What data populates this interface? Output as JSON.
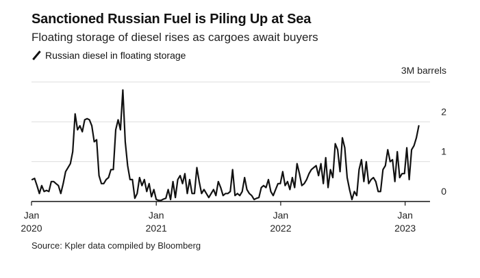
{
  "title": "Sanctioned Russian Fuel is Piling Up at Sea",
  "subtitle": "Floating storage of diesel rises as cargoes await buyers",
  "source": "Source: Kpler data compiled by Bloomberg",
  "colors": {
    "line": "#111111",
    "grid": "#dddddd",
    "axis": "#111111"
  },
  "chart_data": {
    "type": "line",
    "title": "Sanctioned Russian Fuel is Piling Up at Sea",
    "subtitle": "Floating storage of diesel rises as cargoes await buyers",
    "ylabel": "3M barrels",
    "ylim": [
      0,
      3
    ],
    "grid": true,
    "legend_position": "top-left",
    "y_ticks": [
      {
        "value": 2,
        "label": "2"
      },
      {
        "value": 1,
        "label": "1"
      },
      {
        "value": 0,
        "label": "0"
      }
    ],
    "x_ticks": [
      {
        "date": "2020-01-01",
        "month": "Jan",
        "year": "2020"
      },
      {
        "date": "2021-01-01",
        "month": "Jan",
        "year": "2021"
      },
      {
        "date": "2022-01-01",
        "month": "Jan",
        "year": "2022"
      },
      {
        "date": "2023-01-01",
        "month": "Jan",
        "year": "2023"
      }
    ],
    "xlim": [
      "2020-01-01",
      "2023-03-15"
    ],
    "series": [
      {
        "name": "Russian diesel in floating storage",
        "points": [
          [
            "2020-01-03",
            0.55
          ],
          [
            "2020-01-10",
            0.58
          ],
          [
            "2020-01-17",
            0.4
          ],
          [
            "2020-01-24",
            0.2
          ],
          [
            "2020-01-31",
            0.4
          ],
          [
            "2020-02-07",
            0.25
          ],
          [
            "2020-02-14",
            0.28
          ],
          [
            "2020-02-21",
            0.25
          ],
          [
            "2020-02-28",
            0.5
          ],
          [
            "2020-03-06",
            0.5
          ],
          [
            "2020-03-13",
            0.45
          ],
          [
            "2020-03-20",
            0.4
          ],
          [
            "2020-03-27",
            0.2
          ],
          [
            "2020-04-03",
            0.45
          ],
          [
            "2020-04-10",
            0.75
          ],
          [
            "2020-04-17",
            0.85
          ],
          [
            "2020-04-24",
            0.95
          ],
          [
            "2020-05-01",
            1.25
          ],
          [
            "2020-05-08",
            2.2
          ],
          [
            "2020-05-15",
            1.8
          ],
          [
            "2020-05-22",
            1.9
          ],
          [
            "2020-05-29",
            1.75
          ],
          [
            "2020-06-05",
            2.05
          ],
          [
            "2020-06-12",
            2.08
          ],
          [
            "2020-06-19",
            2.05
          ],
          [
            "2020-06-26",
            1.9
          ],
          [
            "2020-07-03",
            1.5
          ],
          [
            "2020-07-10",
            1.55
          ],
          [
            "2020-07-17",
            0.65
          ],
          [
            "2020-07-24",
            0.45
          ],
          [
            "2020-07-31",
            0.45
          ],
          [
            "2020-08-07",
            0.55
          ],
          [
            "2020-08-14",
            0.6
          ],
          [
            "2020-08-21",
            0.8
          ],
          [
            "2020-08-28",
            0.8
          ],
          [
            "2020-09-04",
            1.8
          ],
          [
            "2020-09-11",
            2.05
          ],
          [
            "2020-09-18",
            1.8
          ],
          [
            "2020-09-25",
            2.8
          ],
          [
            "2020-10-02",
            1.5
          ],
          [
            "2020-10-09",
            0.9
          ],
          [
            "2020-10-16",
            0.55
          ],
          [
            "2020-10-23",
            0.55
          ],
          [
            "2020-10-30",
            0.08
          ],
          [
            "2020-11-06",
            0.2
          ],
          [
            "2020-11-13",
            0.6
          ],
          [
            "2020-11-20",
            0.4
          ],
          [
            "2020-11-27",
            0.55
          ],
          [
            "2020-12-04",
            0.25
          ],
          [
            "2020-12-11",
            0.45
          ],
          [
            "2020-12-18",
            0.12
          ],
          [
            "2020-12-25",
            0.3
          ],
          [
            "2021-01-01",
            0.05
          ],
          [
            "2021-01-08",
            0.03
          ],
          [
            "2021-01-15",
            0.03
          ],
          [
            "2021-01-22",
            0.06
          ],
          [
            "2021-01-29",
            0.08
          ],
          [
            "2021-02-05",
            0.3
          ],
          [
            "2021-02-12",
            0.05
          ],
          [
            "2021-02-19",
            0.5
          ],
          [
            "2021-02-26",
            0.1
          ],
          [
            "2021-03-05",
            0.55
          ],
          [
            "2021-03-12",
            0.65
          ],
          [
            "2021-03-19",
            0.45
          ],
          [
            "2021-03-26",
            0.7
          ],
          [
            "2021-04-02",
            0.2
          ],
          [
            "2021-04-09",
            0.55
          ],
          [
            "2021-04-16",
            0.2
          ],
          [
            "2021-04-23",
            0.2
          ],
          [
            "2021-04-30",
            0.85
          ],
          [
            "2021-05-07",
            0.5
          ],
          [
            "2021-05-14",
            0.2
          ],
          [
            "2021-05-21",
            0.3
          ],
          [
            "2021-05-28",
            0.2
          ],
          [
            "2021-06-04",
            0.1
          ],
          [
            "2021-06-11",
            0.2
          ],
          [
            "2021-06-18",
            0.3
          ],
          [
            "2021-06-25",
            0.15
          ],
          [
            "2021-07-02",
            0.5
          ],
          [
            "2021-07-09",
            0.35
          ],
          [
            "2021-07-16",
            0.15
          ],
          [
            "2021-07-23",
            0.2
          ],
          [
            "2021-07-30",
            0.2
          ],
          [
            "2021-08-06",
            0.25
          ],
          [
            "2021-08-13",
            0.8
          ],
          [
            "2021-08-20",
            0.15
          ],
          [
            "2021-08-27",
            0.2
          ],
          [
            "2021-09-03",
            0.15
          ],
          [
            "2021-09-10",
            0.25
          ],
          [
            "2021-09-17",
            0.6
          ],
          [
            "2021-09-24",
            0.3
          ],
          [
            "2021-10-01",
            0.2
          ],
          [
            "2021-10-08",
            0.15
          ],
          [
            "2021-10-15",
            0.05
          ],
          [
            "2021-10-22",
            0.08
          ],
          [
            "2021-10-29",
            0.1
          ],
          [
            "2021-11-05",
            0.35
          ],
          [
            "2021-11-12",
            0.4
          ],
          [
            "2021-11-19",
            0.35
          ],
          [
            "2021-11-26",
            0.55
          ],
          [
            "2021-12-03",
            0.25
          ],
          [
            "2021-12-10",
            0.15
          ],
          [
            "2021-12-17",
            0.3
          ],
          [
            "2021-12-24",
            0.45
          ],
          [
            "2021-12-31",
            0.45
          ],
          [
            "2022-01-07",
            0.75
          ],
          [
            "2022-01-14",
            0.4
          ],
          [
            "2022-01-21",
            0.5
          ],
          [
            "2022-01-28",
            0.3
          ],
          [
            "2022-02-04",
            0.6
          ],
          [
            "2022-02-11",
            0.35
          ],
          [
            "2022-02-18",
            0.95
          ],
          [
            "2022-02-25",
            0.7
          ],
          [
            "2022-03-04",
            0.4
          ],
          [
            "2022-03-11",
            0.45
          ],
          [
            "2022-03-18",
            0.55
          ],
          [
            "2022-03-25",
            0.7
          ],
          [
            "2022-04-01",
            0.8
          ],
          [
            "2022-04-08",
            0.85
          ],
          [
            "2022-04-15",
            0.9
          ],
          [
            "2022-04-22",
            0.65
          ],
          [
            "2022-04-29",
            0.95
          ],
          [
            "2022-05-06",
            0.45
          ],
          [
            "2022-05-13",
            1.1
          ],
          [
            "2022-05-20",
            0.35
          ],
          [
            "2022-05-27",
            0.8
          ],
          [
            "2022-06-03",
            0.6
          ],
          [
            "2022-06-10",
            1.45
          ],
          [
            "2022-06-17",
            1.3
          ],
          [
            "2022-06-24",
            0.75
          ],
          [
            "2022-07-01",
            1.6
          ],
          [
            "2022-07-08",
            1.35
          ],
          [
            "2022-07-15",
            0.6
          ],
          [
            "2022-07-22",
            0.3
          ],
          [
            "2022-07-29",
            0.05
          ],
          [
            "2022-08-05",
            0.25
          ],
          [
            "2022-08-12",
            0.15
          ],
          [
            "2022-08-19",
            0.8
          ],
          [
            "2022-08-26",
            1.05
          ],
          [
            "2022-09-02",
            0.5
          ],
          [
            "2022-09-09",
            1.0
          ],
          [
            "2022-09-16",
            0.45
          ],
          [
            "2022-09-23",
            0.55
          ],
          [
            "2022-09-30",
            0.6
          ],
          [
            "2022-10-07",
            0.5
          ],
          [
            "2022-10-14",
            0.25
          ],
          [
            "2022-10-21",
            0.25
          ],
          [
            "2022-10-28",
            0.8
          ],
          [
            "2022-11-04",
            0.9
          ],
          [
            "2022-11-11",
            1.3
          ],
          [
            "2022-11-18",
            1.0
          ],
          [
            "2022-11-25",
            1.05
          ],
          [
            "2022-12-02",
            0.5
          ],
          [
            "2022-12-09",
            1.25
          ],
          [
            "2022-12-16",
            0.6
          ],
          [
            "2022-12-23",
            0.7
          ],
          [
            "2022-12-30",
            0.7
          ],
          [
            "2023-01-06",
            1.35
          ],
          [
            "2023-01-13",
            0.55
          ],
          [
            "2023-01-20",
            1.3
          ],
          [
            "2023-01-27",
            1.4
          ],
          [
            "2023-02-03",
            1.6
          ],
          [
            "2023-02-10",
            1.9
          ]
        ]
      }
    ]
  }
}
